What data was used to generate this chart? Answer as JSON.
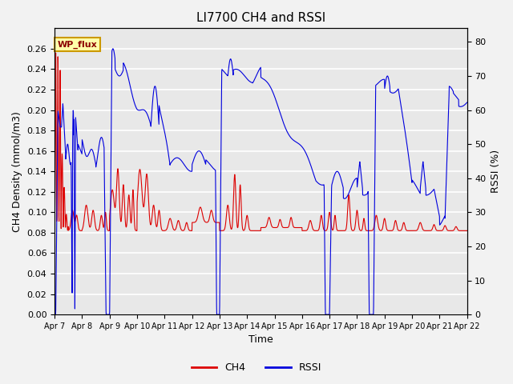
{
  "title": "LI7700 CH4 and RSSI",
  "xlabel": "Time",
  "ylabel_left": "CH4 Density (mmol/m3)",
  "ylabel_right": "RSSI (%)",
  "ylim_left": [
    0.0,
    0.28
  ],
  "ylim_right": [
    0,
    84
  ],
  "x_tick_labels": [
    "Apr 7",
    "Apr 8",
    "Apr 9",
    "Apr 10",
    "Apr 11",
    "Apr 12",
    "Apr 13",
    "Apr 14",
    "Apr 15",
    "Apr 16",
    "Apr 17",
    "Apr 18",
    "Apr 19",
    "Apr 20",
    "Apr 21",
    "Apr 22"
  ],
  "yticks_left": [
    0.0,
    0.02,
    0.04,
    0.06,
    0.08,
    0.1,
    0.12,
    0.14,
    0.16,
    0.18,
    0.2,
    0.22,
    0.24,
    0.26
  ],
  "yticks_right": [
    0,
    10,
    20,
    30,
    40,
    50,
    60,
    70,
    80
  ],
  "annotation_text": "WP_flux",
  "ch4_color": "#dd0000",
  "rssi_color": "#0000dd",
  "bg_color": "#e8e8e8",
  "grid_color": "#ffffff",
  "legend_ch4": "CH4",
  "legend_rssi": "RSSI",
  "figsize": [
    6.4,
    4.8
  ],
  "dpi": 100
}
